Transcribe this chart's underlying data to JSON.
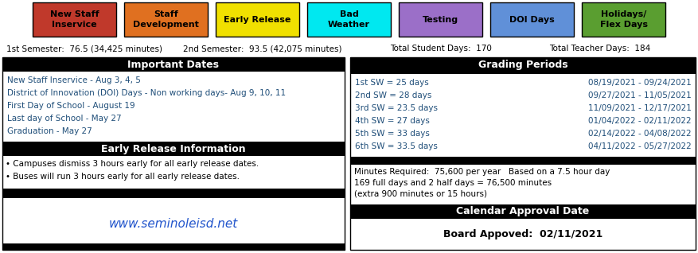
{
  "legend_items": [
    {
      "label": "New Staff\nInservice",
      "color": "#c0392b",
      "text_color": "#000000"
    },
    {
      "label": "Staff\nDevelopment",
      "color": "#e07020",
      "text_color": "#000000"
    },
    {
      "label": "Early Release",
      "color": "#f0e000",
      "text_color": "#000000"
    },
    {
      "label": "Bad\nWeather",
      "color": "#00e8f0",
      "text_color": "#000000"
    },
    {
      "label": "Testing",
      "color": "#9b6fc8",
      "text_color": "#000000"
    },
    {
      "label": "DOI Days",
      "color": "#6090d8",
      "text_color": "#000000"
    },
    {
      "label": "Holidays/\nFlex Days",
      "color": "#5a9e30",
      "text_color": "#000000"
    }
  ],
  "sem1": "1st Semester:  76.5 (34,425 minutes)",
  "sem2": "2nd Semester:  93.5 (42,075 minutes)",
  "total_student": "Total Student Days:  170",
  "total_teacher": "Total Teacher Days:  184",
  "left_panel_title": "Important Dates",
  "left_panel_content": [
    {
      "text": "New Staff Inservice - Aug 3, 4, 5",
      "color": "#1f4e79"
    },
    {
      "text": "District of Innovation (DOI) Days - Non working days- Aug 9, 10, 11",
      "color": "#1f4e79"
    },
    {
      "text": "First Day of School - August 19",
      "color": "#1f4e79"
    },
    {
      "text": "Last day of School - May 27",
      "color": "#1f4e79"
    },
    {
      "text": "Graduation - May 27",
      "color": "#1f4e79"
    }
  ],
  "early_release_title": "Early Release Information",
  "early_release_content": [
    {
      "text": "• Campuses dismiss 3 hours early for all early release dates.",
      "color": "#000000"
    },
    {
      "text": "• Buses will run 3 hours early for all early release dates.",
      "color": "#000000"
    }
  ],
  "website": "www.seminoleisd.net",
  "website_color": "#2255cc",
  "right_panel_title": "Grading Periods",
  "grading_periods": [
    {
      "label": "1st SW = 25 days",
      "dates": "08/19/2021 - 09/24/2021"
    },
    {
      "label": "2nd SW = 28 days",
      "dates": "09/27/2021 - 11/05/2021"
    },
    {
      "label": "3rd SW = 23.5 days",
      "dates": "11/09/2021 - 12/17/2021"
    },
    {
      "label": "4th SW = 27 days",
      "dates": "01/04/2022 - 02/11/2022"
    },
    {
      "label": "5th SW = 33 days",
      "dates": "02/14/2022 - 04/08/2022"
    },
    {
      "label": "6th SW = 33.5 days",
      "dates": "04/11/2022 - 05/27/2022"
    }
  ],
  "minutes_text": [
    "Minutes Required:  75,600 per year   Based on a 7.5 hour day",
    "169 full days and 2 half days = 76,500 minutes",
    "(extra 900 minutes or 15 hours)"
  ],
  "approval_title": "Calendar Approval Date",
  "approval_text": "Board Appoved:  02/11/2021",
  "bg_color": "#ffffff",
  "black": "#000000",
  "white": "#ffffff",
  "text_blue": "#1f4e79"
}
